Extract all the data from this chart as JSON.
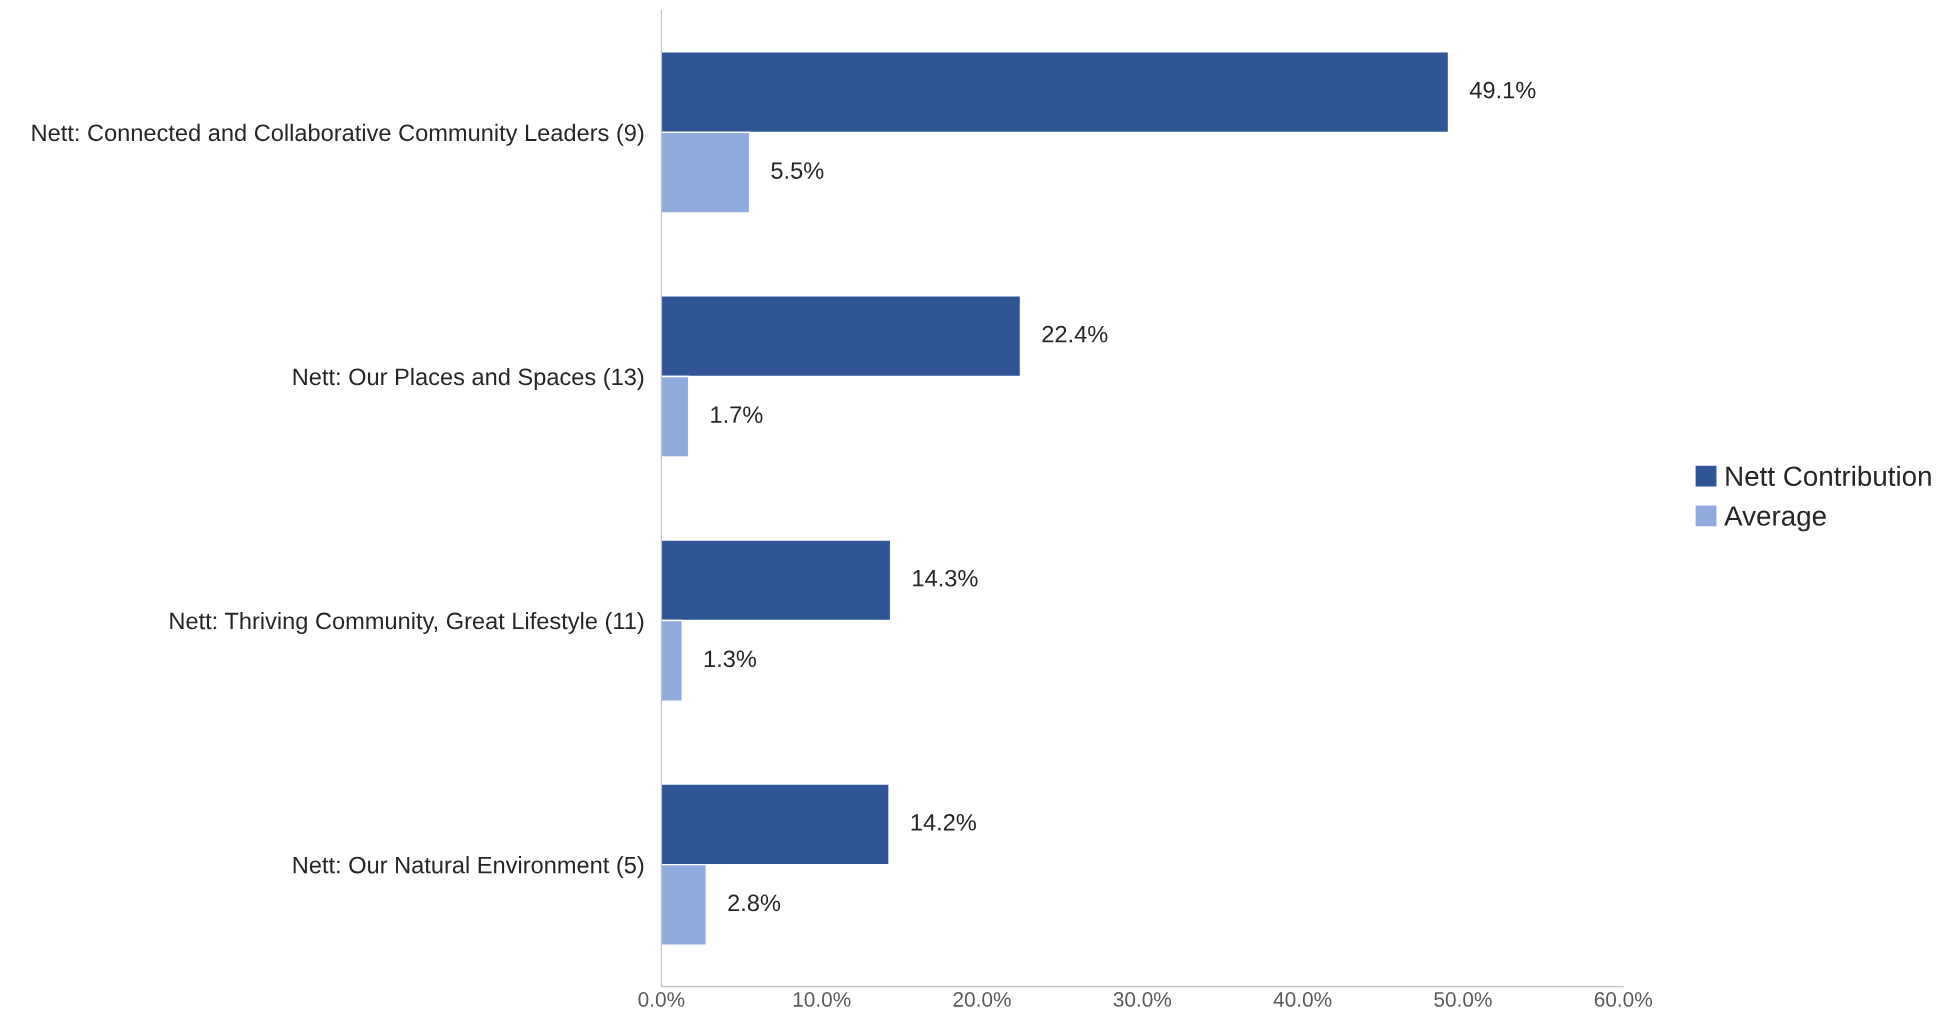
{
  "chart_data": {
    "type": "bar",
    "orientation": "horizontal",
    "categories": [
      "Nett: Connected and Collaborative Community Leaders (9)",
      "Nett: Our Places and Spaces (13)",
      "Nett: Thriving Community, Great Lifestyle (11)",
      "Nett: Our Natural Environment (5)"
    ],
    "series": [
      {
        "name": "Nett Contribution",
        "color": "#2f5597",
        "values": [
          49.1,
          22.4,
          14.3,
          14.2
        ],
        "value_labels": [
          "49.1%",
          "22.4%",
          "14.3%",
          "14.2%"
        ]
      },
      {
        "name": "Average",
        "color": "#8faadc",
        "values": [
          5.5,
          1.7,
          1.3,
          2.8
        ],
        "value_labels": [
          "5.5%",
          "1.7%",
          "1.3%",
          "2.8%"
        ]
      }
    ],
    "xlim": [
      0,
      60
    ],
    "xticks": [
      {
        "value": 0,
        "label": "0.0%"
      },
      {
        "value": 10,
        "label": "10.0%"
      },
      {
        "value": 20,
        "label": "20.0%"
      },
      {
        "value": 30,
        "label": "30.0%"
      },
      {
        "value": 40,
        "label": "40.0%"
      },
      {
        "value": 50,
        "label": "50.0%"
      },
      {
        "value": 60,
        "label": "60.0%"
      }
    ],
    "grid": false,
    "legend": "right"
  }
}
